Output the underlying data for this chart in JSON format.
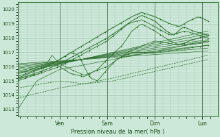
{
  "xlabel": "Pression niveau de la mer( hPa )",
  "bg_color": "#cce8d8",
  "grid_color": "#a8c8b8",
  "line_color": "#2d6e2d",
  "ylim": [
    1012.5,
    1020.5
  ],
  "yticks": [
    1013,
    1014,
    1015,
    1016,
    1017,
    1018,
    1019,
    1020
  ],
  "day_labels": [
    "Ven",
    "Sam",
    "Dim",
    "Lun"
  ],
  "day_positions": [
    0.22,
    0.47,
    0.72,
    0.97
  ],
  "xlim": [
    0.0,
    1.05
  ]
}
